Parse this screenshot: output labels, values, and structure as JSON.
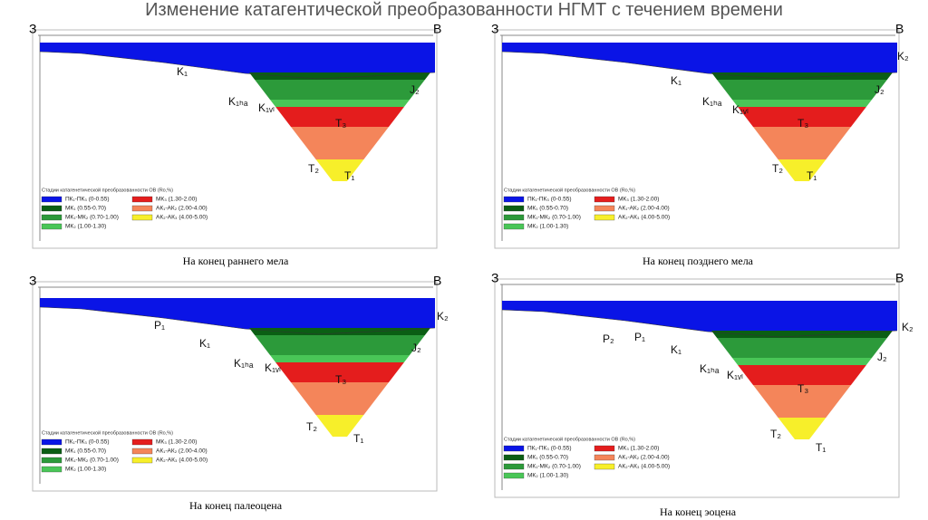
{
  "title": "Изменение катагентической преобразованности НГМТ с течением времени",
  "legend": {
    "title": "Стадии катагенетической преобразованности ОВ (Ro,%)",
    "items": [
      {
        "label": "ПК₁-ПК₃ (0-0.55)",
        "color": "#0a14e6"
      },
      {
        "label": "МК₁ (0.55-0.70)",
        "color": "#0b5e14"
      },
      {
        "label": "МК₁-МК₂ (0.70-1.00)",
        "color": "#2c9a3a"
      },
      {
        "label": "МК₂ (1.00-1.30)",
        "color": "#49c657"
      },
      {
        "label": "МК₃ (1.30-2.00)",
        "color": "#e41d1d"
      },
      {
        "label": "АК₁-АК₂ (2.00-4.00)",
        "color": "#f4855a"
      },
      {
        "label": "АК₂-АК₃ (4.00-5.00)",
        "color": "#f7ef2a"
      }
    ]
  },
  "panels": [
    {
      "left": "З",
      "right": "В",
      "caption": "На конец раннего мела",
      "labels": [
        "K₁",
        "K₁ₕₐ",
        "K₁ᵥₗ",
        "T₃",
        "T₂",
        "T₁",
        "J₂"
      ]
    },
    {
      "left": "З",
      "right": "В",
      "caption": "На конец позднего мела",
      "labels": [
        "K₁",
        "K₁ₕₐ",
        "K₁ᵥₗ",
        "T₃",
        "T₂",
        "T₁",
        "J₂",
        "K₂"
      ]
    },
    {
      "left": "З",
      "right": "В",
      "caption": "На конец палеоцена",
      "labels": [
        "P₁",
        "K₁",
        "K₁ₕₐ",
        "K₁ᵥₗ",
        "T₃",
        "T₂",
        "T₁",
        "J₂",
        "K₂"
      ]
    },
    {
      "left": "З",
      "right": "В",
      "caption": "На конец эоцена",
      "labels": [
        "P₂",
        "P₁",
        "K₁",
        "K₁ₕₐ",
        "K₁ᵥₗ",
        "T₃",
        "T₂",
        "T₁",
        "J₂",
        "K₂"
      ]
    }
  ]
}
